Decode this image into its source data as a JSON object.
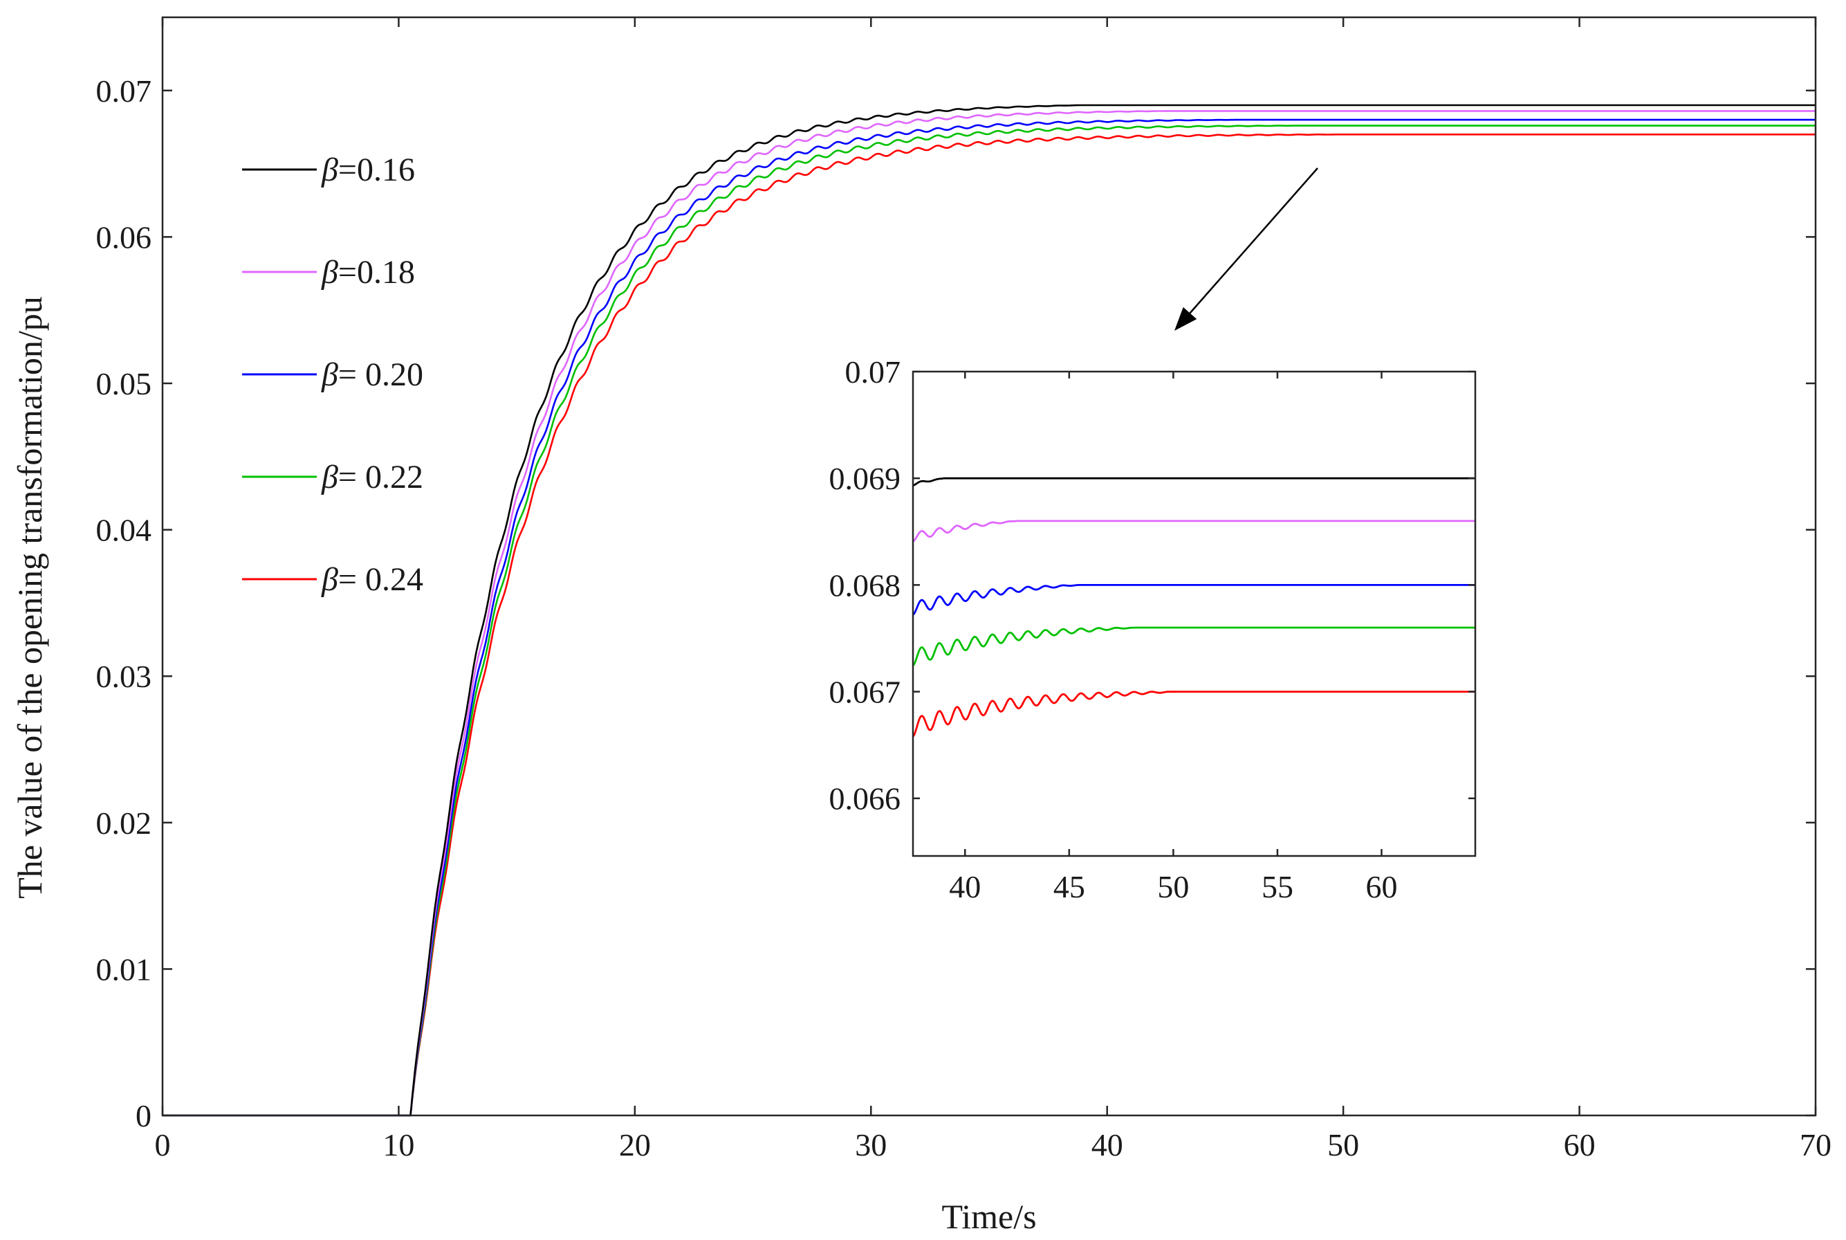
{
  "chart_data": [
    {
      "id": "main",
      "type": "line",
      "title": "",
      "xlabel": "Time/s",
      "ylabel": "The value of the opening transformation/pu",
      "xlim": [
        0,
        70
      ],
      "ylim": [
        0,
        0.075
      ],
      "xticks": [
        0,
        10,
        20,
        30,
        40,
        50,
        60,
        70
      ],
      "xtick_labels": [
        "0",
        "10",
        "20",
        "30",
        "40",
        "50",
        "60",
        "70"
      ],
      "yticks": [
        0,
        0.01,
        0.02,
        0.03,
        0.04,
        0.05,
        0.06,
        0.07
      ],
      "ytick_labels": [
        "0",
        "0.01",
        "0.02",
        "0.03",
        "0.04",
        "0.05",
        "0.06",
        "0.07"
      ],
      "grid": false,
      "legend_position": "top-left",
      "step_start_time": 10.5,
      "series": [
        {
          "name": "β=0.16",
          "legend_prefix": "β",
          "legend_rest": "=0.16",
          "beta": 0.16,
          "color": "#000000",
          "final_value": 0.069,
          "settle_time": 39.0
        },
        {
          "name": "β=0.18",
          "legend_prefix": "β",
          "legend_rest": "=0.18",
          "beta": 0.18,
          "color": "#e066ff",
          "final_value": 0.0686,
          "settle_time": 42.5
        },
        {
          "name": "β= 0.20",
          "legend_prefix": "β",
          "legend_rest": "= 0.20",
          "beta": 0.2,
          "color": "#0000ff",
          "final_value": 0.068,
          "settle_time": 45.5
        },
        {
          "name": "β= 0.22",
          "legend_prefix": "β",
          "legend_rest": "= 0.22",
          "beta": 0.22,
          "color": "#00c000",
          "final_value": 0.0676,
          "settle_time": 48.2
        },
        {
          "name": "β= 0.24",
          "legend_prefix": "β",
          "legend_rest": "= 0.24",
          "beta": 0.24,
          "color": "#ff0000",
          "final_value": 0.067,
          "settle_time": 50.2
        }
      ]
    },
    {
      "id": "inset",
      "type": "line",
      "title": "",
      "xlabel": "",
      "ylabel": "",
      "xlim": [
        37.5,
        64.5
      ],
      "ylim": [
        0.06546,
        0.07
      ],
      "xticks": [
        40,
        45,
        50,
        55,
        60
      ],
      "xtick_labels": [
        "40",
        "45",
        "50",
        "55",
        "60"
      ],
      "yticks": [
        0.066,
        0.067,
        0.068,
        0.069,
        0.07
      ],
      "ytick_labels": [
        "0.066",
        "0.067",
        "0.068",
        "0.069",
        "0.07"
      ],
      "grid": false
    }
  ]
}
